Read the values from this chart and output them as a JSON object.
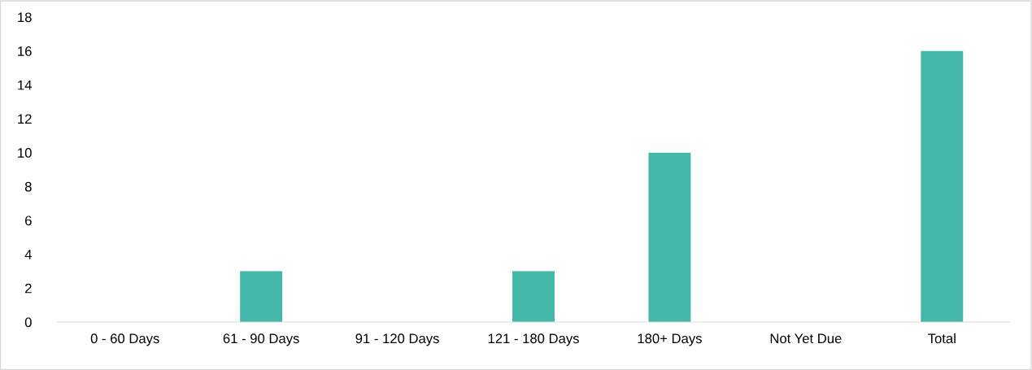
{
  "chart_data": {
    "type": "bar",
    "categories": [
      "0 - 60 Days",
      "61 - 90 Days",
      "91 - 120 Days",
      "121 - 180 Days",
      "180+ Days",
      "Not Yet Due",
      "Total"
    ],
    "values": [
      0,
      3,
      0,
      3,
      10,
      0,
      16
    ],
    "color": "#43b7a8",
    "ylim": [
      0,
      18
    ],
    "yticks": [
      0,
      2,
      4,
      6,
      8,
      10,
      12,
      14,
      16,
      18
    ],
    "grid": false
  }
}
